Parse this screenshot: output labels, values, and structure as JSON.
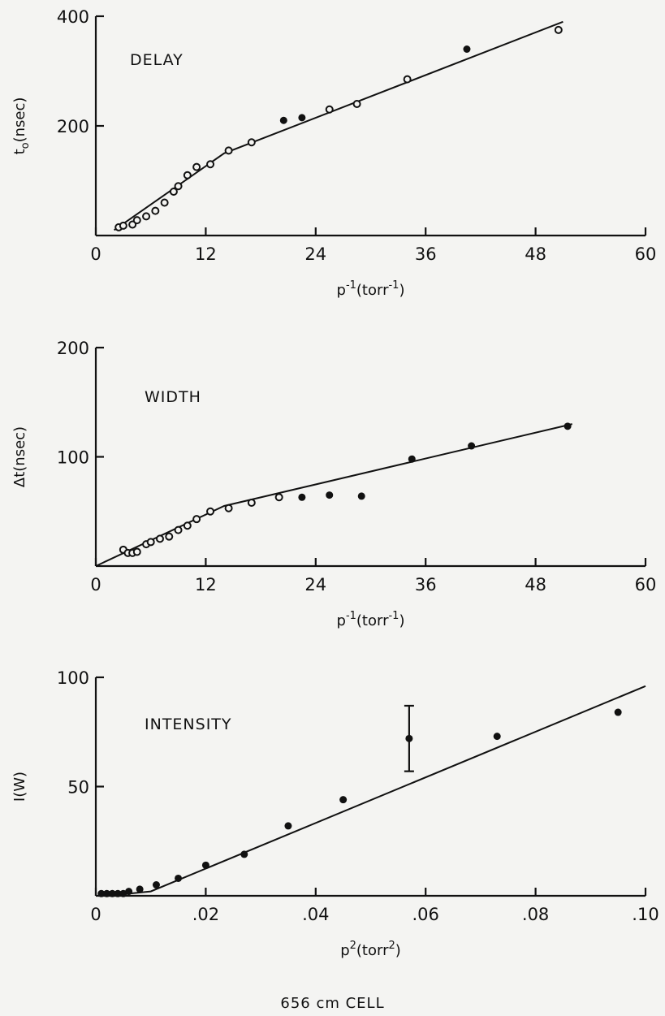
{
  "chart_data": [
    {
      "type": "scatter",
      "title": "DELAY",
      "ylabel": "to (nsec)",
      "xlabel": "p^-1 (torr^-1)",
      "xlabel_parts": [
        "p",
        "-1",
        "(torr",
        "-1",
        ")"
      ],
      "ylabel_parts": [
        "t",
        "o",
        "(nsec)"
      ],
      "xlim": [
        0,
        60
      ],
      "ylim": [
        0,
        400
      ],
      "xticks": [
        "0",
        "12",
        "24",
        "36",
        "48",
        "60"
      ],
      "yticks": [
        "200",
        "400"
      ],
      "ytick_values": [
        200,
        400
      ],
      "fit_line": [
        [
          2,
          10
        ],
        [
          14,
          150
        ],
        [
          51,
          390
        ]
      ],
      "points": [
        {
          "x": 2.5,
          "y": 15,
          "filled": false
        },
        {
          "x": 3,
          "y": 18,
          "filled": false
        },
        {
          "x": 4,
          "y": 20,
          "filled": false
        },
        {
          "x": 4.5,
          "y": 28,
          "filled": false
        },
        {
          "x": 5.5,
          "y": 35,
          "filled": false
        },
        {
          "x": 6.5,
          "y": 45,
          "filled": false
        },
        {
          "x": 7.5,
          "y": 60,
          "filled": false
        },
        {
          "x": 8.5,
          "y": 80,
          "filled": false
        },
        {
          "x": 9,
          "y": 90,
          "filled": false
        },
        {
          "x": 10,
          "y": 110,
          "filled": false
        },
        {
          "x": 11,
          "y": 125,
          "filled": false
        },
        {
          "x": 12.5,
          "y": 130,
          "filled": false
        },
        {
          "x": 14.5,
          "y": 155,
          "filled": false
        },
        {
          "x": 17,
          "y": 170,
          "filled": false
        },
        {
          "x": 20.5,
          "y": 210,
          "filled": true
        },
        {
          "x": 22.5,
          "y": 215,
          "filled": true
        },
        {
          "x": 25.5,
          "y": 230,
          "filled": false
        },
        {
          "x": 28.5,
          "y": 240,
          "filled": false
        },
        {
          "x": 34,
          "y": 285,
          "filled": false
        },
        {
          "x": 40.5,
          "y": 340,
          "filled": true
        },
        {
          "x": 50.5,
          "y": 375,
          "filled": false
        }
      ]
    },
    {
      "type": "scatter",
      "title": "WIDTH",
      "ylabel": "Δt (nsec)",
      "xlabel": "p^-1 (torr^-1)",
      "xlabel_parts": [
        "p",
        "-1",
        "(torr",
        "-1",
        ")"
      ],
      "ylabel_parts": [
        "Δt",
        "",
        "(nsec)"
      ],
      "xlim": [
        0,
        60
      ],
      "ylim": [
        0,
        200
      ],
      "xticks": [
        "0",
        "12",
        "24",
        "36",
        "48",
        "60"
      ],
      "yticks": [
        "100",
        "200"
      ],
      "ytick_values": [
        100,
        200
      ],
      "fit_line": [
        [
          0,
          0
        ],
        [
          14,
          55
        ],
        [
          52,
          130
        ]
      ],
      "points": [
        {
          "x": 3,
          "y": 15,
          "filled": false
        },
        {
          "x": 3.5,
          "y": 12,
          "filled": false
        },
        {
          "x": 4,
          "y": 12,
          "filled": false
        },
        {
          "x": 4.5,
          "y": 13,
          "filled": false
        },
        {
          "x": 5.5,
          "y": 20,
          "filled": false
        },
        {
          "x": 6,
          "y": 22,
          "filled": false
        },
        {
          "x": 7,
          "y": 25,
          "filled": false
        },
        {
          "x": 8,
          "y": 27,
          "filled": false
        },
        {
          "x": 9,
          "y": 33,
          "filled": false
        },
        {
          "x": 10,
          "y": 37,
          "filled": false
        },
        {
          "x": 11,
          "y": 43,
          "filled": false
        },
        {
          "x": 12.5,
          "y": 50,
          "filled": false
        },
        {
          "x": 14.5,
          "y": 53,
          "filled": false
        },
        {
          "x": 17,
          "y": 58,
          "filled": false
        },
        {
          "x": 20,
          "y": 63,
          "filled": false
        },
        {
          "x": 22.5,
          "y": 63,
          "filled": true
        },
        {
          "x": 25.5,
          "y": 65,
          "filled": true
        },
        {
          "x": 29,
          "y": 64,
          "filled": true
        },
        {
          "x": 34.5,
          "y": 98,
          "filled": true
        },
        {
          "x": 41,
          "y": 110,
          "filled": true
        },
        {
          "x": 51.5,
          "y": 128,
          "filled": true
        }
      ]
    },
    {
      "type": "scatter",
      "title": "INTENSITY",
      "ylabel": "I(W)",
      "xlabel": "p^2 (torr^2)",
      "xlabel_parts": [
        "p",
        "2",
        "(torr",
        "2",
        ")"
      ],
      "ylabel_parts": [
        "I(W)",
        "",
        ""
      ],
      "xlim": [
        0,
        0.1
      ],
      "ylim": [
        0,
        100
      ],
      "xticks": [
        "0",
        ".02",
        ".04",
        ".06",
        ".08",
        ".10"
      ],
      "yticks": [
        "50",
        "100"
      ],
      "ytick_values": [
        50,
        100
      ],
      "fit_line": [
        [
          0.002,
          0
        ],
        [
          0.01,
          2
        ],
        [
          0.1,
          96
        ]
      ],
      "points": [
        {
          "x": 0.001,
          "y": 1,
          "filled": true
        },
        {
          "x": 0.002,
          "y": 1,
          "filled": true
        },
        {
          "x": 0.003,
          "y": 1,
          "filled": true
        },
        {
          "x": 0.004,
          "y": 1,
          "filled": true
        },
        {
          "x": 0.005,
          "y": 1,
          "filled": true
        },
        {
          "x": 0.006,
          "y": 2,
          "filled": true
        },
        {
          "x": 0.008,
          "y": 3,
          "filled": true
        },
        {
          "x": 0.011,
          "y": 5,
          "filled": true
        },
        {
          "x": 0.015,
          "y": 8,
          "filled": true
        },
        {
          "x": 0.02,
          "y": 14,
          "filled": true
        },
        {
          "x": 0.027,
          "y": 19,
          "filled": true
        },
        {
          "x": 0.035,
          "y": 32,
          "filled": true
        },
        {
          "x": 0.045,
          "y": 44,
          "filled": true
        },
        {
          "x": 0.057,
          "y": 72,
          "filled": true,
          "error": [
            57,
            87
          ]
        },
        {
          "x": 0.073,
          "y": 73,
          "filled": true
        },
        {
          "x": 0.095,
          "y": 84,
          "filled": true
        }
      ]
    }
  ],
  "footer": "656 cm CELL"
}
